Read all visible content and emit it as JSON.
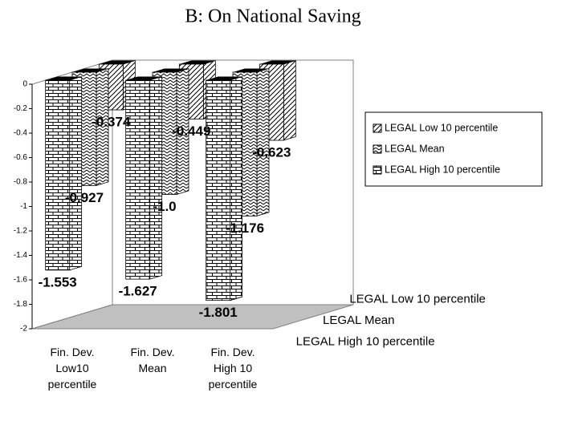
{
  "chart_data": {
    "type": "bar3d",
    "title": "B: On National Saving",
    "categories": [
      "Fin. Dev. Low10 percentile",
      "Fin. Dev. Mean",
      "Fin. Dev. High 10 percentile"
    ],
    "series": [
      {
        "name": "LEGAL Low 10 percentile",
        "color": "#ffffff",
        "values": [
          -0.374,
          -0.449,
          -0.623
        ],
        "value_labels": [
          "-0.374",
          "-0.449",
          "-0.623"
        ]
      },
      {
        "name": "LEGAL Mean",
        "color": "#ffffff",
        "values": [
          -0.927,
          -1.0,
          -1.176
        ],
        "value_labels": [
          "-0.927",
          "-1.0",
          "-1.176"
        ]
      },
      {
        "name": "LEGAL High 10 percentile",
        "color": "#ffffff",
        "values": [
          -1.553,
          -1.627,
          -1.801
        ],
        "value_labels": [
          "-1.553",
          "-1.627",
          "-1.801"
        ]
      }
    ],
    "ylim": [
      -2,
      0
    ],
    "yticks": [
      0,
      -0.2,
      -0.4,
      -0.6,
      -0.8,
      -1,
      -1.2,
      -1.4,
      -1.6,
      -1.8,
      -2
    ],
    "legend": "right"
  }
}
